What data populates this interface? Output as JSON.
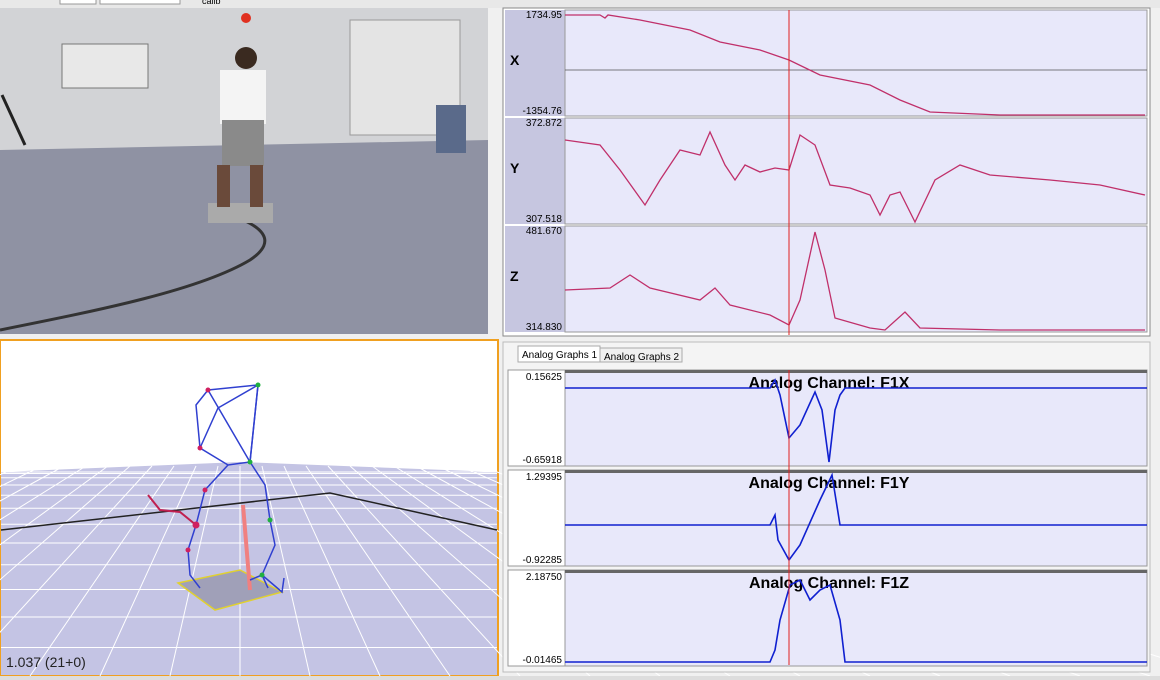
{
  "toolbar": {
    "label": "calib"
  },
  "trajectory_graphs": [
    {
      "axis": "X",
      "max": "1734.95",
      "min": "-1354.76"
    },
    {
      "axis": "Y",
      "max": "372.872",
      "min": "307.518"
    },
    {
      "axis": "Z",
      "max": "481.670",
      "min": "314.830"
    }
  ],
  "analog_tabs": [
    "Analog Graphs 1",
    "Analog Graphs 2"
  ],
  "analog_graphs": [
    {
      "title": "Analog Channel: F1X",
      "max": "0.15625",
      "min": "-0.65918"
    },
    {
      "title": "Analog Channel: F1Y",
      "max": "1.29395",
      "min": "-0.92285"
    },
    {
      "title": "Analog Channel: F1Z",
      "max": "2.18750",
      "min": "-0.01465"
    }
  ],
  "view3d": {
    "frame_label": "1.037 (21+0)"
  }
}
